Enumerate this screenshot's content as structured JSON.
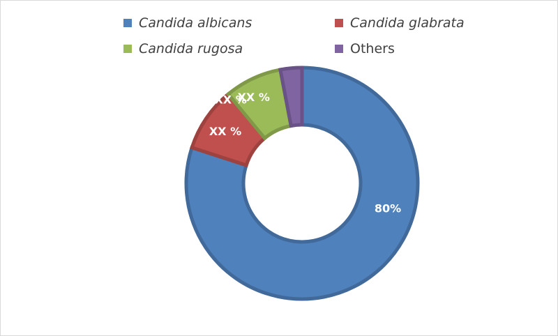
{
  "chart_data": {
    "type": "pie",
    "variant": "doughnut",
    "legend_position": "top",
    "slices": [
      {
        "label": "Candida albicans",
        "value": 80,
        "data_label": "80%",
        "color": "#4f81bd",
        "italic": true
      },
      {
        "label": "Candida glabrata",
        "value": 9,
        "data_label": "XX %",
        "color": "#c0504d",
        "italic": true
      },
      {
        "label": "Candida rugosa",
        "value": 8,
        "data_label": "XX %",
        "color": "#9bbb59",
        "italic": true
      },
      {
        "label": "Others",
        "value": 3,
        "data_label": "XX %",
        "color": "#8064a2",
        "italic": false
      }
    ]
  }
}
